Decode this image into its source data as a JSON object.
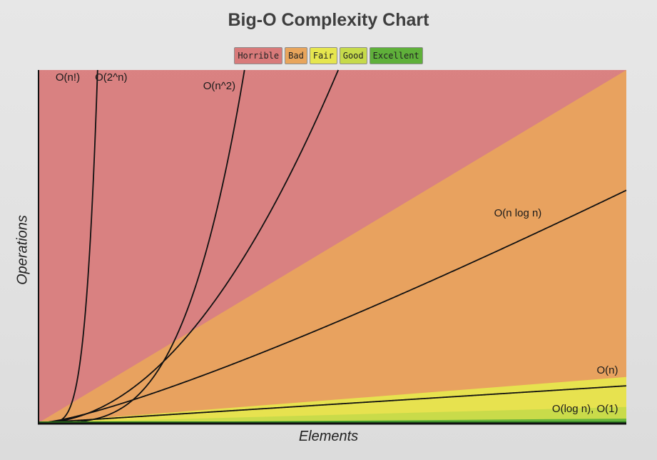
{
  "page": {
    "title": "Big-O Complexity Chart"
  },
  "legend": [
    {
      "key": "horrible",
      "label": "Horrible",
      "color": "#d87a7a"
    },
    {
      "key": "bad",
      "label": "Bad",
      "color": "#e8a55c"
    },
    {
      "key": "fair",
      "label": "Fair",
      "color": "#e6e64e"
    },
    {
      "key": "good",
      "label": "Good",
      "color": "#c6da4a"
    },
    {
      "key": "excellent",
      "label": "Excellent",
      "color": "#5fb03a"
    }
  ],
  "chart_data": {
    "type": "line",
    "title": "Big-O Complexity Chart",
    "xlabel": "Elements",
    "ylabel": "Operations",
    "xlim": [
      0,
      100
    ],
    "ylim": [
      0,
      1000
    ],
    "grid": false,
    "legend_position": "top-center",
    "regions": [
      {
        "name": "Horrible",
        "color": "#d87a7a"
      },
      {
        "name": "Bad",
        "color": "#e8a55c"
      },
      {
        "name": "Fair",
        "color": "#e6e64e"
      },
      {
        "name": "Good",
        "color": "#c6da4a"
      },
      {
        "name": "Excellent",
        "color": "#5fb03a"
      }
    ],
    "series": [
      {
        "name": "O(n!)",
        "label": "O(n!)",
        "fn": "factorial"
      },
      {
        "name": "O(2^n)",
        "label": "O(2^n)",
        "fn": "exp2"
      },
      {
        "name": "O(n^2)",
        "label": "O(n^2)",
        "fn": "square"
      },
      {
        "name": "O(n log n)",
        "label": "O(n log n)",
        "fn": "nlogn"
      },
      {
        "name": "O(n)",
        "label": "O(n)",
        "fn": "linear"
      },
      {
        "name": "O(log n), O(1)",
        "label": "O(log n), O(1)",
        "fn": "const"
      }
    ]
  }
}
